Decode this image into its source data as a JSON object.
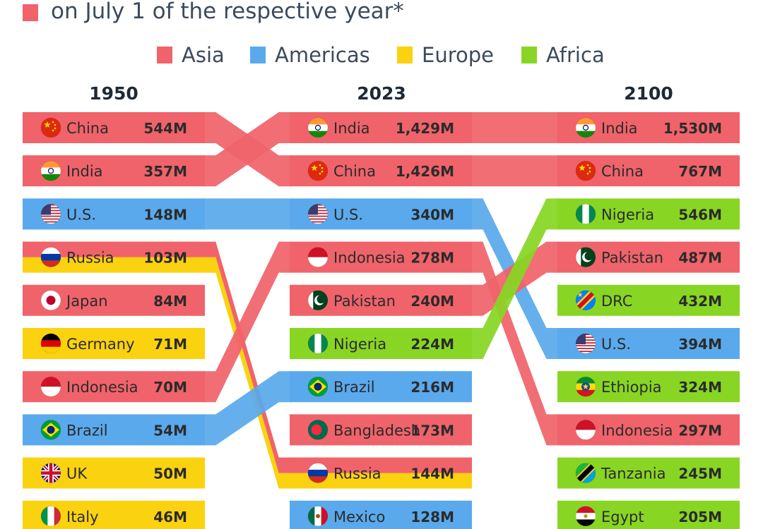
{
  "subtitle": "on July 1 of the respective year*",
  "colors": {
    "Asia": "#f0636a",
    "Americas": "#5aa9ec",
    "Europe": "#fbd20f",
    "Africa": "#88d623"
  },
  "legend": [
    {
      "label": "Asia",
      "region": "Asia"
    },
    {
      "label": "Americas",
      "region": "Americas"
    },
    {
      "label": "Europe",
      "region": "Europe"
    },
    {
      "label": "Africa",
      "region": "Africa"
    }
  ],
  "chart_data": {
    "type": "bump",
    "years": [
      "1950",
      "2023",
      "2100"
    ],
    "unit": "M",
    "rankings": {
      "1950": [
        {
          "country": "China",
          "value": "544M",
          "region": "Asia",
          "flag": "china-flag"
        },
        {
          "country": "India",
          "value": "357M",
          "region": "Asia",
          "flag": "india-flag"
        },
        {
          "country": "U.S.",
          "value": "148M",
          "region": "Americas",
          "flag": "us-flag"
        },
        {
          "country": "Russia",
          "value": "103M",
          "region": "Asia",
          "region2": "Europe",
          "flag": "russia-flag"
        },
        {
          "country": "Japan",
          "value": "84M",
          "region": "Asia",
          "flag": "japan-flag"
        },
        {
          "country": "Germany",
          "value": "71M",
          "region": "Europe",
          "flag": "germany-flag"
        },
        {
          "country": "Indonesia",
          "value": "70M",
          "region": "Asia",
          "flag": "indonesia-flag"
        },
        {
          "country": "Brazil",
          "value": "54M",
          "region": "Americas",
          "flag": "brazil-flag"
        },
        {
          "country": "UK",
          "value": "50M",
          "region": "Europe",
          "flag": "uk-flag"
        },
        {
          "country": "Italy",
          "value": "46M",
          "region": "Europe",
          "flag": "italy-flag"
        }
      ],
      "2023": [
        {
          "country": "India",
          "value": "1,429M",
          "region": "Asia",
          "flag": "india-flag"
        },
        {
          "country": "China",
          "value": "1,426M",
          "region": "Asia",
          "flag": "china-flag"
        },
        {
          "country": "U.S.",
          "value": "340M",
          "region": "Americas",
          "flag": "us-flag"
        },
        {
          "country": "Indonesia",
          "value": "278M",
          "region": "Asia",
          "flag": "indonesia-flag"
        },
        {
          "country": "Pakistan",
          "value": "240M",
          "region": "Asia",
          "flag": "pakistan-flag"
        },
        {
          "country": "Nigeria",
          "value": "224M",
          "region": "Africa",
          "flag": "nigeria-flag"
        },
        {
          "country": "Brazil",
          "value": "216M",
          "region": "Americas",
          "flag": "brazil-flag"
        },
        {
          "country": "Bangladesh",
          "value": "173M",
          "region": "Asia",
          "flag": "bangladesh-flag"
        },
        {
          "country": "Russia",
          "value": "144M",
          "region": "Asia",
          "region2": "Europe",
          "flag": "russia-flag"
        },
        {
          "country": "Mexico",
          "value": "128M",
          "region": "Americas",
          "flag": "mexico-flag"
        }
      ],
      "2100": [
        {
          "country": "India",
          "value": "1,530M",
          "region": "Asia",
          "flag": "india-flag"
        },
        {
          "country": "China",
          "value": "767M",
          "region": "Asia",
          "flag": "china-flag"
        },
        {
          "country": "Nigeria",
          "value": "546M",
          "region": "Africa",
          "flag": "nigeria-flag"
        },
        {
          "country": "Pakistan",
          "value": "487M",
          "region": "Asia",
          "flag": "pakistan-flag"
        },
        {
          "country": "DRC",
          "value": "432M",
          "region": "Africa",
          "flag": "drc-flag"
        },
        {
          "country": "U.S.",
          "value": "394M",
          "region": "Americas",
          "flag": "us-flag"
        },
        {
          "country": "Ethiopia",
          "value": "324M",
          "region": "Africa",
          "flag": "ethiopia-flag"
        },
        {
          "country": "Indonesia",
          "value": "297M",
          "region": "Asia",
          "flag": "indonesia-flag"
        },
        {
          "country": "Tanzania",
          "value": "245M",
          "region": "Africa",
          "flag": "tanzania-flag"
        },
        {
          "country": "Egypt",
          "value": "205M",
          "region": "Africa",
          "flag": "egypt-flag"
        }
      ]
    }
  }
}
